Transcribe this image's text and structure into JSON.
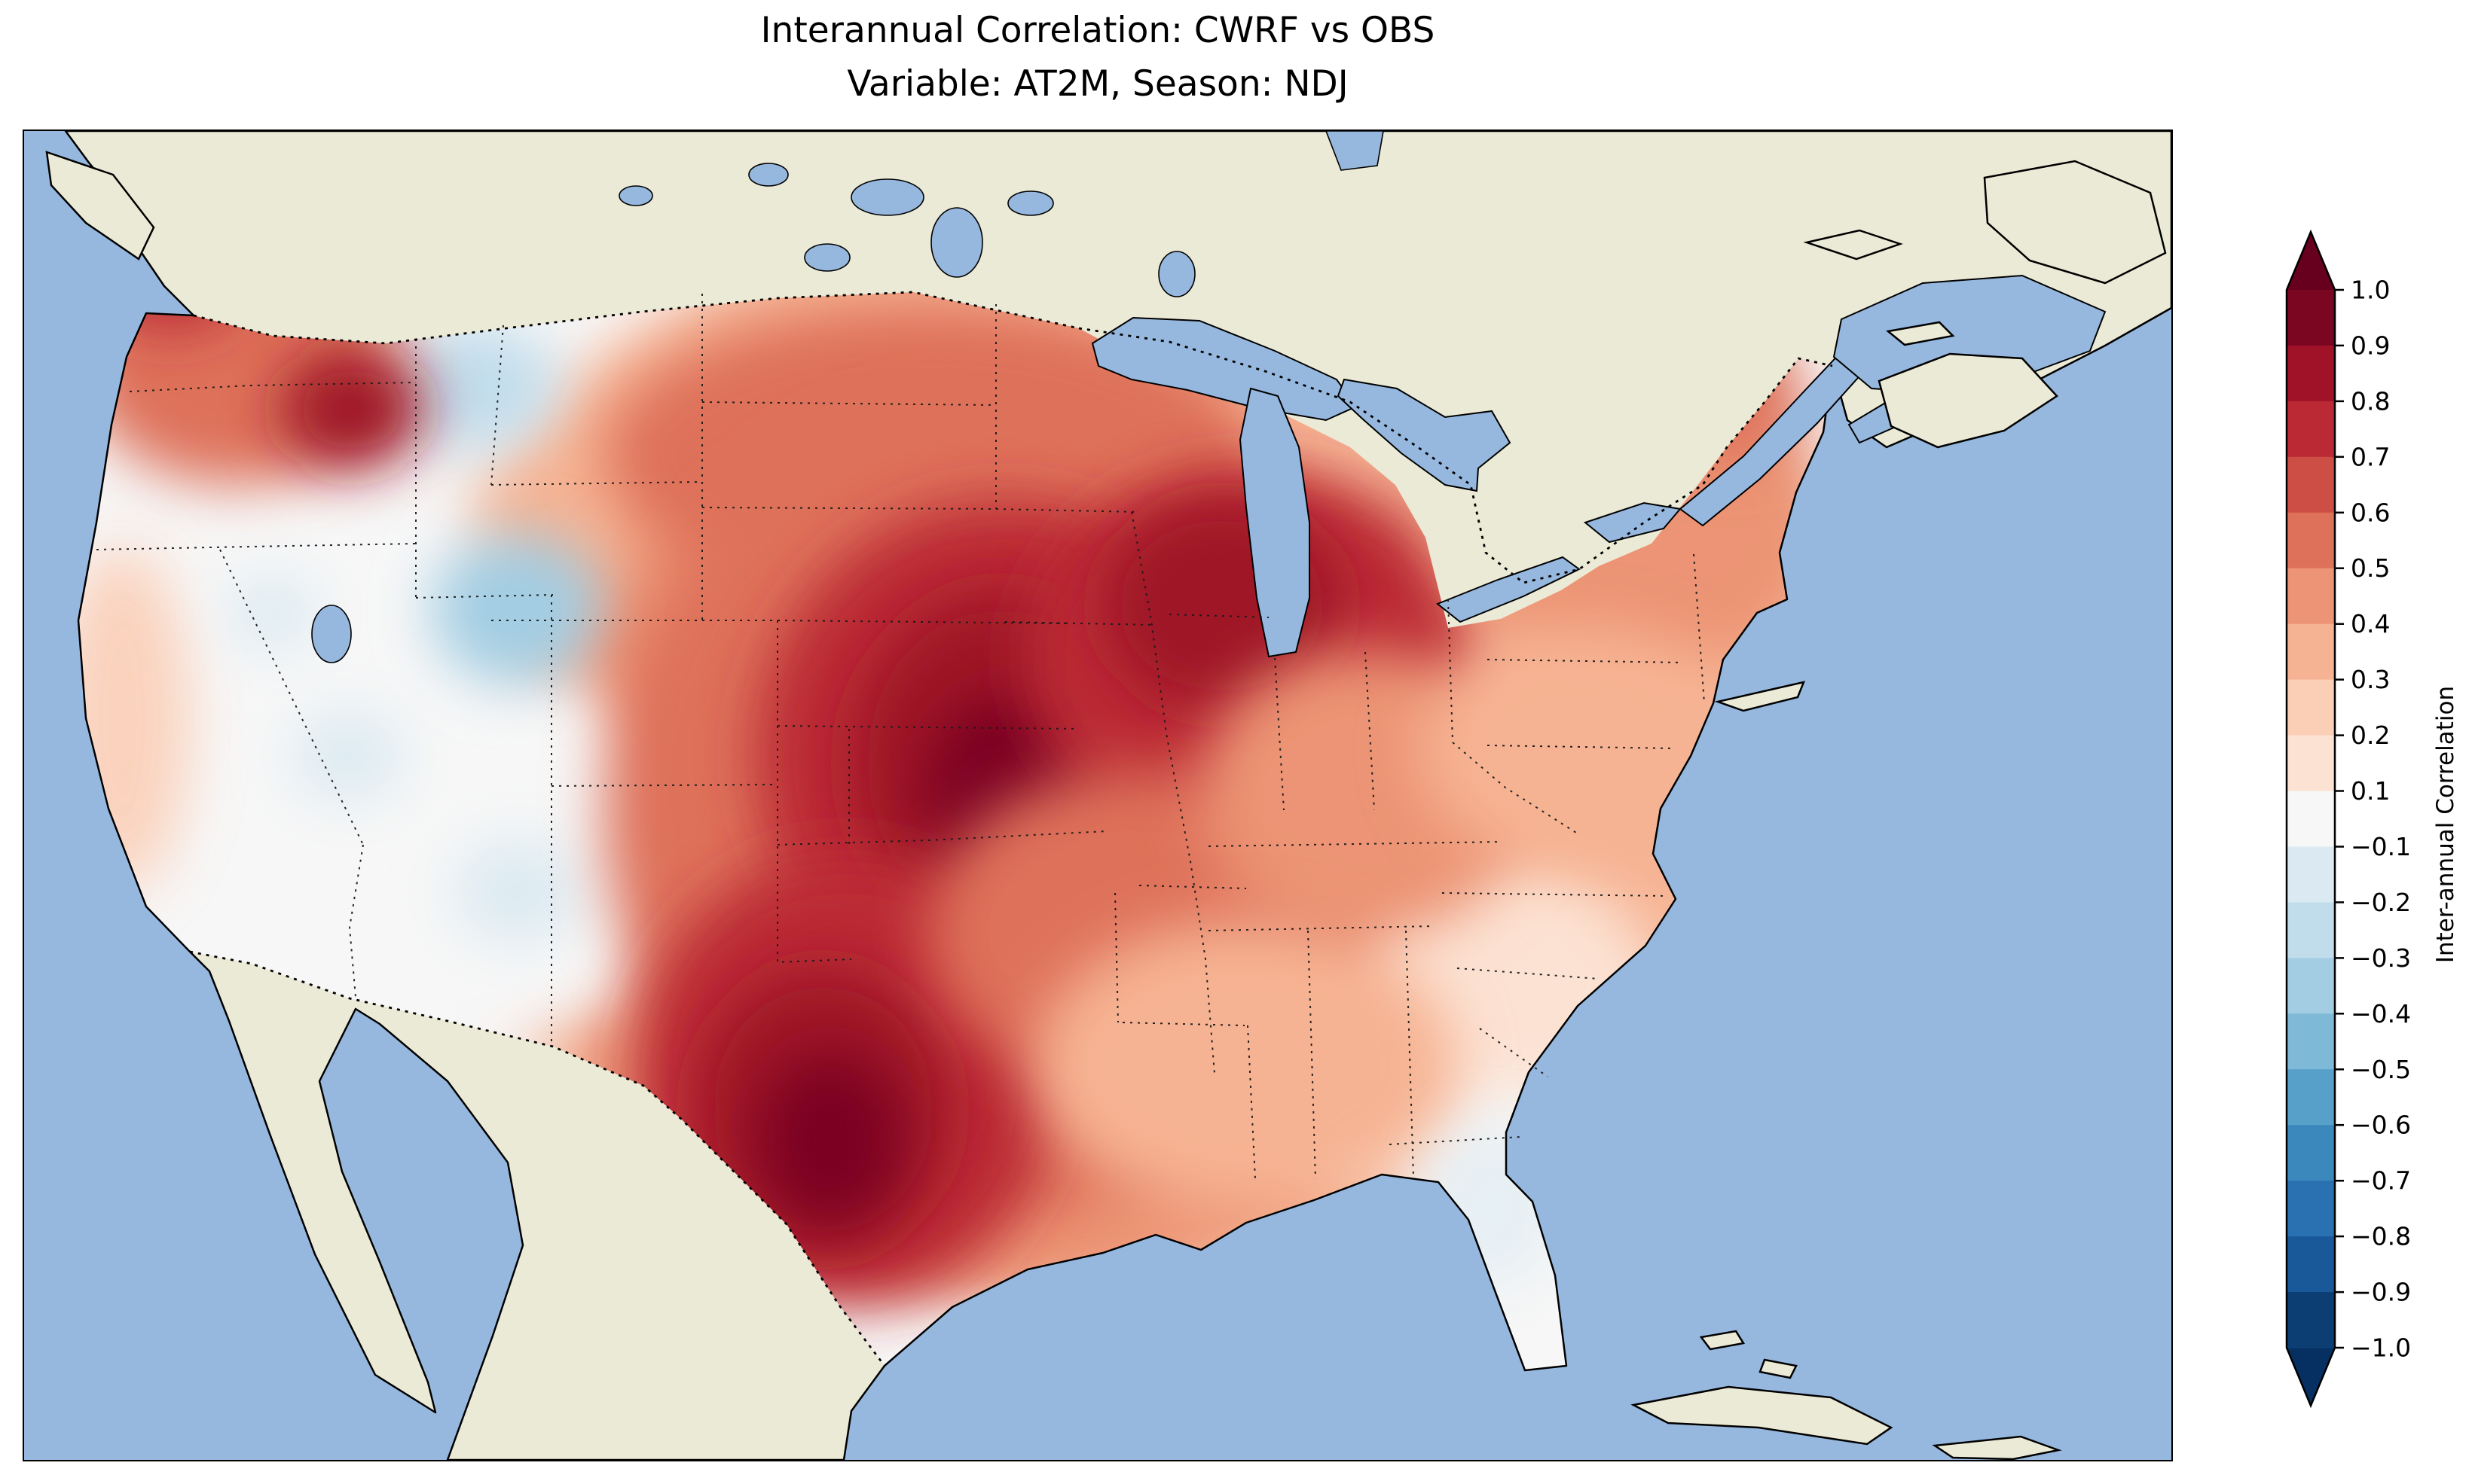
{
  "figure": {
    "title_line1": "Interannual Correlation: CWRF vs OBS",
    "title_line2": "Variable: AT2M, Season: NDJ"
  },
  "colorbar": {
    "label": "Inter-annual Correlation",
    "ticks": [
      "1.0",
      "0.9",
      "0.8",
      "0.7",
      "0.6",
      "0.5",
      "0.4",
      "0.3",
      "0.2",
      "0.1",
      "−0.1",
      "−0.2",
      "−0.3",
      "−0.4",
      "−0.5",
      "−0.6",
      "−0.7",
      "−0.8",
      "−0.9",
      "−1.0"
    ],
    "bin_colors": [
      "#7a0622",
      "#9f1228",
      "#bb2a34",
      "#cd4e44",
      "#de715a",
      "#ec9475",
      "#f6b393",
      "#fbceb6",
      "#fce2d3",
      "#f7f7f7",
      "#dbeaf2",
      "#c1ddec",
      "#a2cde3",
      "#7eb9d7",
      "#57a0ca",
      "#3b88bd",
      "#2a71b2",
      "#1a5999",
      "#0c3e74"
    ],
    "over_color": "#67001f",
    "under_color": "#053061"
  },
  "palette": {
    "ocean": "#96b7de",
    "land": "#ebead6",
    "coastline": "#000000",
    "background": "#ffffff"
  },
  "chart_data": {
    "type": "heatmap",
    "title": "Interannual Correlation: CWRF vs OBS",
    "subtitle": "Variable: AT2M, Season: NDJ",
    "comparison": "CWRF vs OBS",
    "variable": "AT2M",
    "season": "NDJ",
    "colormap": "RdBu_r",
    "value_range": [
      -1.0,
      1.0
    ],
    "contour_levels": [
      -1.0,
      -0.9,
      -0.8,
      -0.7,
      -0.6,
      -0.5,
      -0.4,
      -0.3,
      -0.2,
      -0.1,
      0.1,
      0.2,
      0.3,
      0.4,
      0.5,
      0.6,
      0.7,
      0.8,
      0.9,
      1.0
    ],
    "legend_position": "right",
    "region_values": [
      {
        "region": "Central Midwest (Iowa / Missouri / Illinois)",
        "correlation": 0.9
      },
      {
        "region": "Central Texas",
        "correlation": 0.9
      },
      {
        "region": "Great Plains (Nebraska / Kansas / Oklahoma)",
        "correlation": 0.7
      },
      {
        "region": "Upper Midwest (Wisconsin / Michigan / Indiana)",
        "correlation": 0.75
      },
      {
        "region": "Northern Plains (Montana / Dakotas)",
        "correlation": 0.45
      },
      {
        "region": "Pacific Northwest coast",
        "correlation": 0.55
      },
      {
        "region": "Idaho / eastern Oregon",
        "correlation": 0.6
      },
      {
        "region": "Great Basin (Nevada / Utah)",
        "correlation": 0.0
      },
      {
        "region": "Wyoming",
        "correlation": -0.35
      },
      {
        "region": "Southwest (Arizona / New Mexico)",
        "correlation": -0.1
      },
      {
        "region": "California coast",
        "correlation": 0.25
      },
      {
        "region": "Northeast (New England / Maine)",
        "correlation": 0.5
      },
      {
        "region": "Mid-Atlantic",
        "correlation": 0.35
      },
      {
        "region": "Southeast (Georgia / Carolinas)",
        "correlation": 0.15
      },
      {
        "region": "Florida",
        "correlation": -0.1
      },
      {
        "region": "Gulf Coast (Louisiana / Mississippi / Alabama)",
        "correlation": 0.35
      },
      {
        "region": "Arkansas / Tennessee valley",
        "correlation": 0.55
      }
    ]
  }
}
